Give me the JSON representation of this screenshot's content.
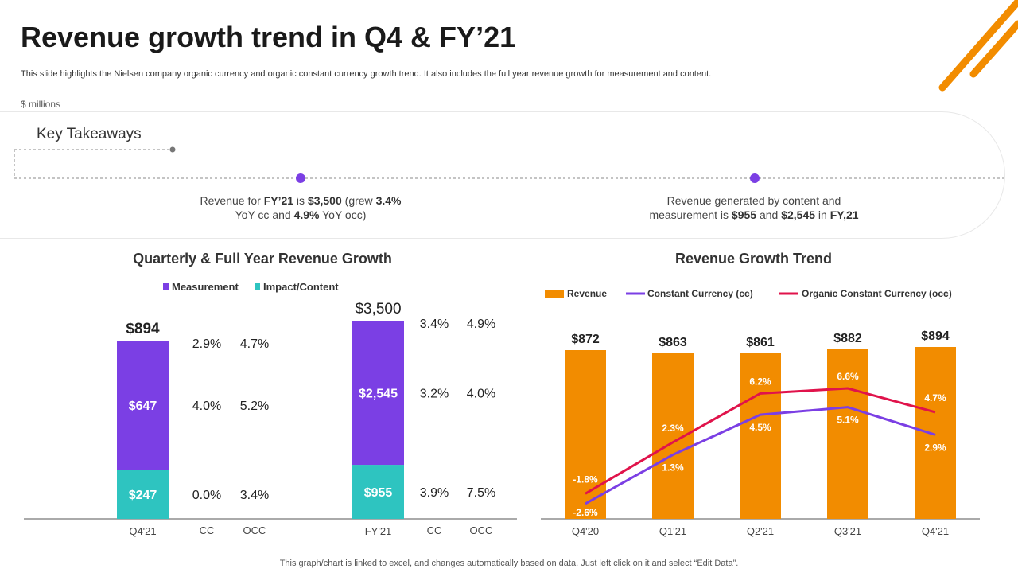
{
  "header": {
    "title": "Revenue growth trend in Q4 & FY’21",
    "subtitle": "This slide highlights the Nielsen company organic currency and organic constant currency growth trend. It also includes the full year revenue growth for measurement and content.",
    "units": "$ millions"
  },
  "takeaways": {
    "title": "Key Takeaways",
    "left": {
      "p1": "Revenue for ",
      "b1": "FY’21",
      "p2": " is ",
      "b2": "$3,500",
      "p3": " (grew ",
      "b3": "3.4%",
      "p4": "YoY cc and ",
      "b4": "4.9%",
      "p5": " YoY occ)"
    },
    "right": {
      "p1": "Revenue generated by content and",
      "p2": "measurement is ",
      "b1": "$955",
      "p3": " and ",
      "b2": "$2,545",
      "p4": " in ",
      "b3": "FY,21"
    }
  },
  "footer": "This graph/chart is linked to excel,  and changes automatically based on data. Just left click on it and select “Edit Data”.",
  "colors": {
    "measurement": "#7B3FE4",
    "content": "#2EC4C0",
    "revenue": "#F28C00",
    "cc": "#7B3FE4",
    "occ": "#E0134B",
    "accent": "#F28C00"
  },
  "chart_data": [
    {
      "type": "bar",
      "title": "Quarterly & Full Year Revenue Growth",
      "legend": [
        "Measurement",
        "Impact/Content"
      ],
      "column_headers": [
        "CC",
        "OCC"
      ],
      "groups": [
        {
          "category": "Q4'21",
          "total": "$894",
          "segments": [
            {
              "name": "Measurement",
              "value": 647,
              "label": "$647"
            },
            {
              "name": "Impact/Content",
              "value": 247,
              "label": "$247"
            }
          ],
          "rows": [
            {
              "cc": "2.9%",
              "occ": "4.7%"
            },
            {
              "cc": "4.0%",
              "occ": "5.2%"
            },
            {
              "cc": "0.0%",
              "occ": "3.4%"
            }
          ]
        },
        {
          "category": "FY'21",
          "total": "$3,500",
          "segments": [
            {
              "name": "Measurement",
              "value": 2545,
              "label": "$2,545"
            },
            {
              "name": "Impact/Content",
              "value": 955,
              "label": "$955"
            }
          ],
          "rows": [
            {
              "cc": "3.4%",
              "occ": "4.9%"
            },
            {
              "cc": "3.2%",
              "occ": "4.0%"
            },
            {
              "cc": "3.9%",
              "occ": "7.5%"
            }
          ]
        }
      ]
    },
    {
      "type": "bar",
      "title": "Revenue Growth Trend",
      "categories": [
        "Q4'20",
        "Q1'21",
        "Q2'21",
        "Q3'21",
        "Q4'21"
      ],
      "legend": [
        "Revenue",
        "Constant Currency (cc)",
        "Organic Constant Currency (occ)"
      ],
      "series": [
        {
          "name": "Revenue",
          "kind": "bar",
          "values": [
            872,
            863,
            861,
            882,
            894
          ],
          "labels": [
            "$872",
            "$863",
            "$861",
            "$882",
            "$894"
          ]
        },
        {
          "name": "Constant Currency (cc)",
          "kind": "line",
          "values": [
            -2.6,
            1.3,
            4.5,
            5.1,
            2.9
          ],
          "labels": [
            "-2.6%",
            "1.3%",
            "4.5%",
            "5.1%",
            "2.9%"
          ]
        },
        {
          "name": "Organic Constant Currency (occ)",
          "kind": "line",
          "values": [
            -1.8,
            2.3,
            6.2,
            6.6,
            4.7
          ],
          "labels": [
            "-1.8%",
            "2.3%",
            "6.2%",
            "6.6%",
            "4.7%"
          ]
        }
      ],
      "ylim_bars": [
        0,
        950
      ],
      "ylim_lines": [
        -4,
        12
      ]
    }
  ]
}
